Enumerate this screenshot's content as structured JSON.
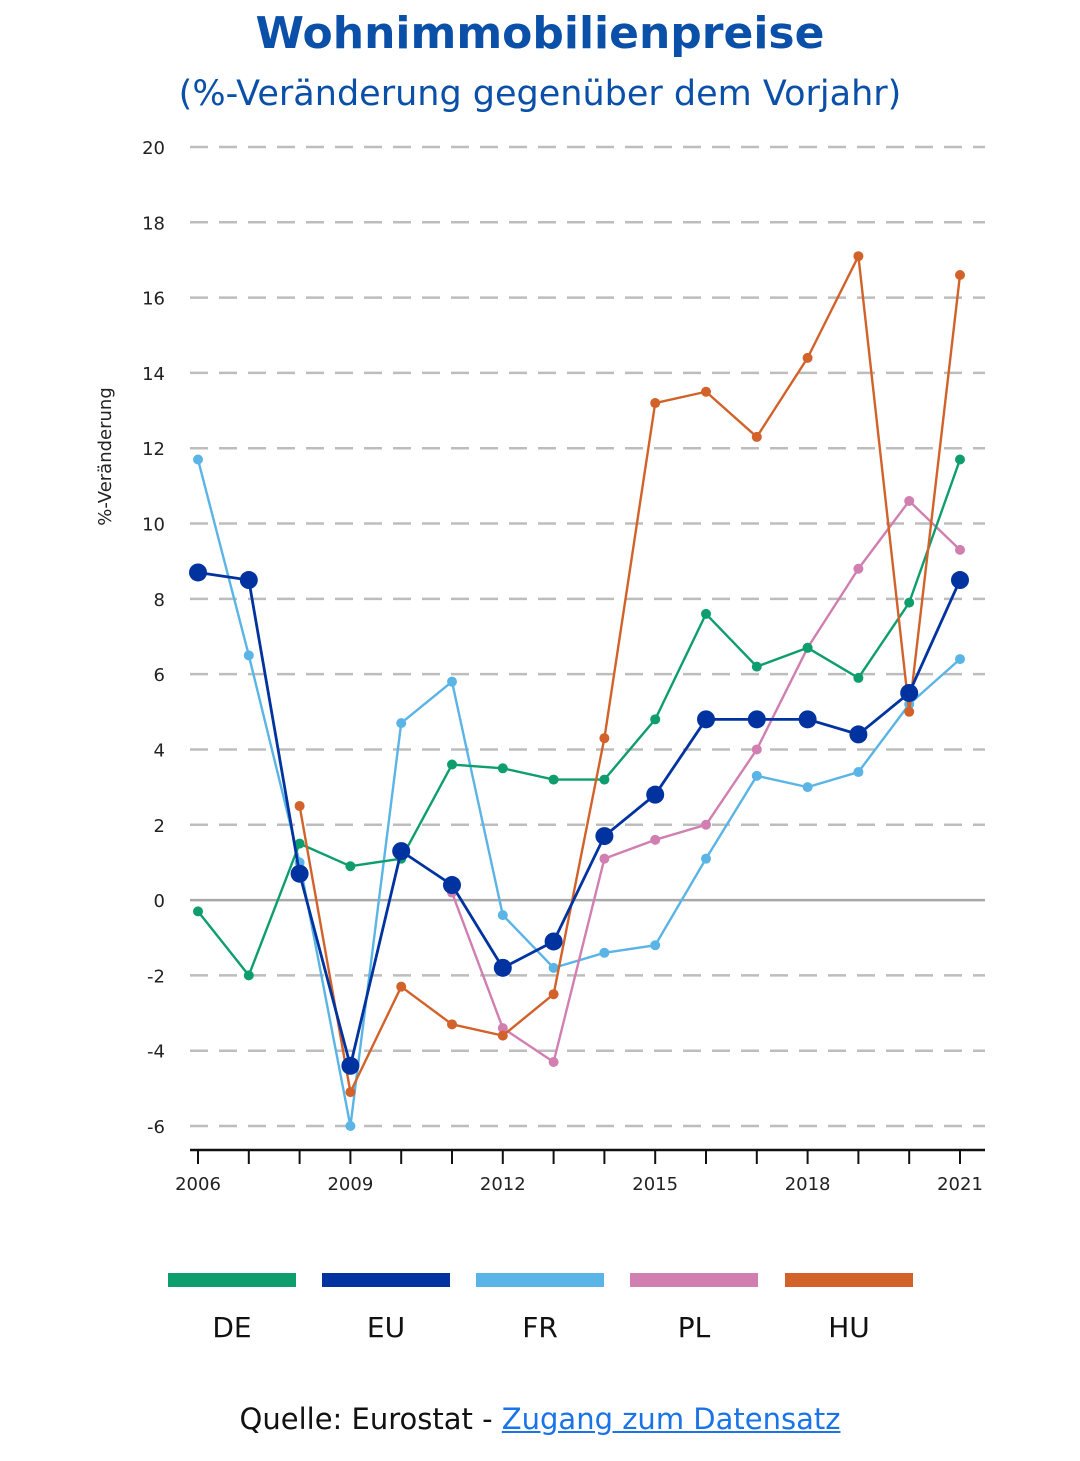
{
  "colors": {
    "title": "#0a4fa8",
    "DE": "#0e9e6e",
    "EU": "#0033a0",
    "FR": "#5ab4e5",
    "PL": "#d17fb0",
    "HU": "#d2622a",
    "grid": "#bdbdbd",
    "zero": "#a8a8a8"
  },
  "title": "Wohnimmobilienpreise",
  "subtitle": "(%-Veränderung gegenüber dem Vorjahr)",
  "source": {
    "prefix": "Quelle: Eurostat - ",
    "link_text": "Zugang zum Datensatz"
  },
  "chart_data": {
    "type": "line",
    "ylabel": "%-Veränderung",
    "xlabel": "",
    "x": [
      2006,
      2007,
      2008,
      2009,
      2010,
      2011,
      2012,
      2013,
      2014,
      2015,
      2016,
      2017,
      2018,
      2019,
      2020,
      2021
    ],
    "x_tick_labels": [
      "2006",
      "2009",
      "2012",
      "2015",
      "2018",
      "2021"
    ],
    "x_tick_values": [
      2006,
      2009,
      2012,
      2015,
      2018,
      2021
    ],
    "ylim": [
      -6,
      20
    ],
    "y_ticks": [
      20,
      18,
      16,
      14,
      12,
      10,
      8,
      6,
      4,
      2,
      0,
      -2,
      -4,
      -6
    ],
    "y_tick_labels": [
      "20",
      "18",
      "16",
      "14",
      "12",
      "10",
      "8",
      "6",
      "4",
      "2",
      "0",
      "-2",
      "-4",
      "-6"
    ],
    "grid": "horizontal dashed",
    "legend": "bottom",
    "series": [
      {
        "name": "DE",
        "values": [
          -0.3,
          -2.0,
          1.5,
          0.9,
          1.1,
          3.6,
          3.5,
          3.2,
          3.2,
          4.8,
          7.6,
          6.2,
          6.7,
          5.9,
          7.9,
          11.7
        ]
      },
      {
        "name": "EU",
        "values": [
          8.7,
          8.5,
          0.7,
          -4.4,
          1.3,
          0.4,
          -1.8,
          -1.1,
          1.7,
          2.8,
          4.8,
          4.8,
          4.8,
          4.4,
          5.5,
          8.5
        ]
      },
      {
        "name": "FR",
        "values": [
          11.7,
          6.5,
          1.0,
          -6.0,
          4.7,
          5.8,
          -0.4,
          -1.8,
          -1.4,
          -1.2,
          1.1,
          3.3,
          3.0,
          3.4,
          5.2,
          6.4
        ]
      },
      {
        "name": "PL",
        "values": [
          null,
          null,
          null,
          null,
          null,
          0.2,
          -3.4,
          -4.3,
          1.1,
          1.6,
          2.0,
          4.0,
          6.7,
          8.8,
          10.6,
          9.3
        ]
      },
      {
        "name": "HU",
        "values": [
          null,
          null,
          2.5,
          -5.1,
          -2.3,
          -3.3,
          -3.6,
          -2.5,
          4.3,
          13.2,
          13.5,
          12.3,
          14.4,
          17.1,
          5.0,
          16.6
        ]
      }
    ]
  }
}
